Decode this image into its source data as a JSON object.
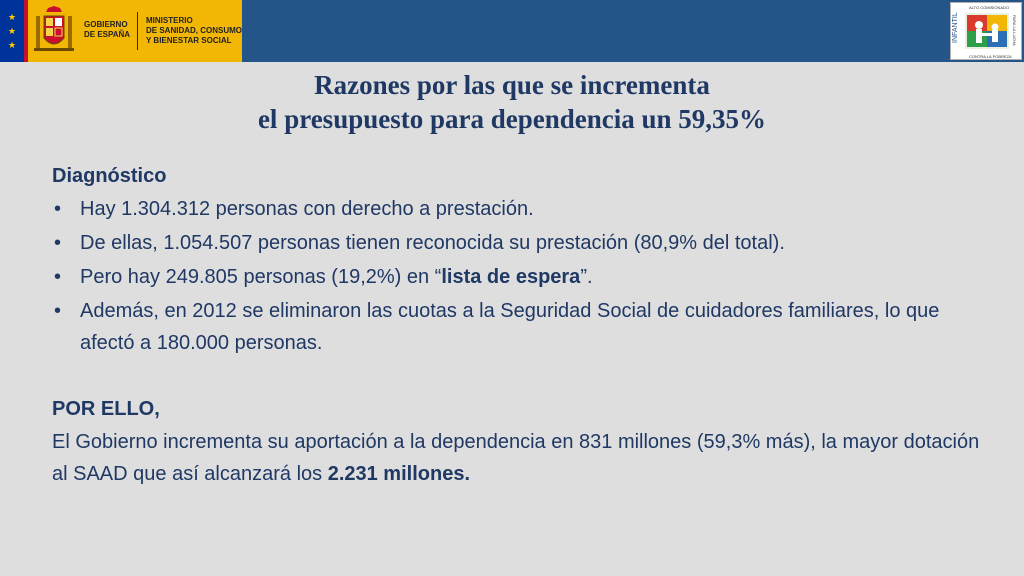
{
  "header": {
    "gov_name_line1": "GOBIERNO",
    "gov_name_line2": "DE ESPAÑA",
    "ministry_line1": "MINISTERIO",
    "ministry_line2": "DE SANIDAD, CONSUMO",
    "ministry_line3": "Y BIENESTAR SOCIAL",
    "right_logo": {
      "line1": "ALTO COMISIONADO",
      "vertical_left": "INFANTIL",
      "vertical_right": "PARA LA LUCHA",
      "bottom": "CONTRA LA POBREZA"
    },
    "colors": {
      "bar": "#245588",
      "gov_block": "#f2b705",
      "eu_flag": "#003399"
    }
  },
  "title": {
    "line1": "Razones por las que se incrementa",
    "line2": "el presupuesto para dependencia un 59,35%"
  },
  "diagnostico": {
    "heading": "Diagnóstico",
    "items": [
      {
        "text": "Hay 1.304.312 personas con derecho a prestación."
      },
      {
        "text": "De ellas, 1.054.507 personas tienen reconocida su prestación (80,9% del total)."
      },
      {
        "before": "Pero hay 249.805 personas (19,2%) en “",
        "bold": "lista de espera",
        "after": "”."
      },
      {
        "text": "Además, en 2012 se eliminaron las cuotas a la Seguridad Social de cuidadores familiares, lo que afectó a 180.000 personas."
      }
    ],
    "bullet": "•"
  },
  "conclusion": {
    "heading": "POR ELLO,",
    "text_before": "El Gobierno incrementa su aportación a la dependencia en 831 millones (59,3% más), la mayor dotación al SAAD que así alcanzará los ",
    "bold": "2.231 millones."
  }
}
